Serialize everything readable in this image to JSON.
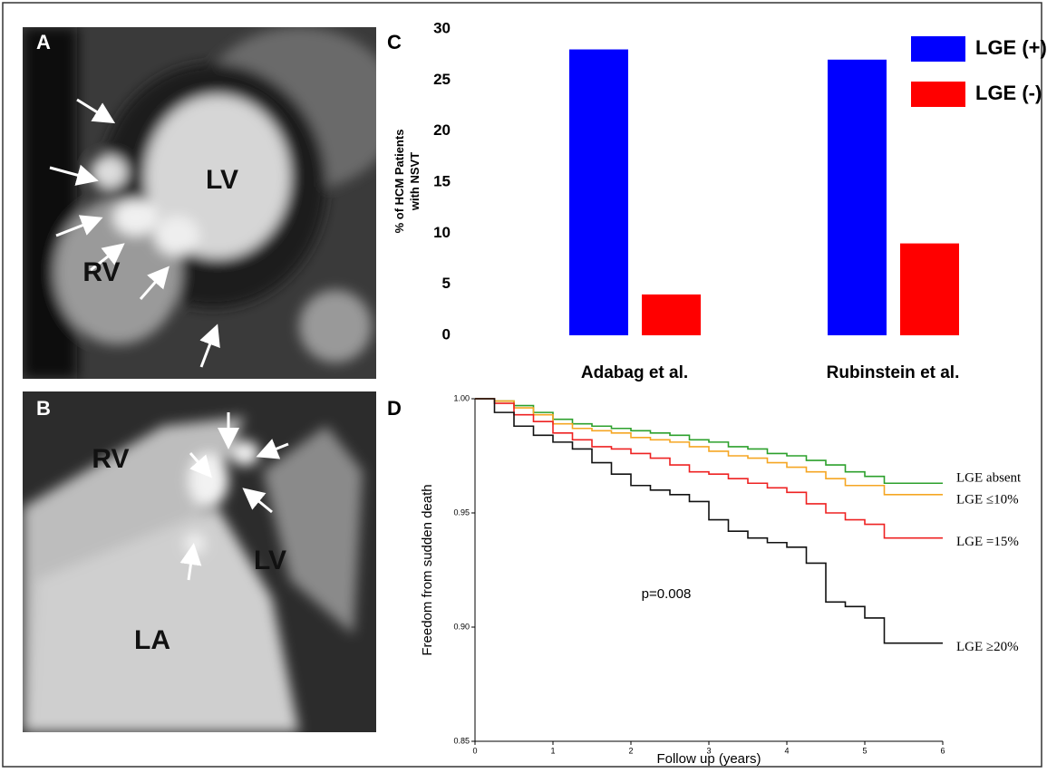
{
  "images": [
    {
      "panel": "A",
      "labels": [
        "LV",
        "RV"
      ]
    },
    {
      "panel": "B",
      "labels": [
        "RV",
        "LV",
        "LA"
      ]
    }
  ],
  "chart_data": [
    {
      "type": "bar",
      "panel_label": "C",
      "y_label": [
        "% of HCM Patients",
        "with NSVT"
      ],
      "categories": [
        "Adabag et al.",
        "Rubinstein et al."
      ],
      "series": [
        {
          "name": "LGE (+)",
          "color": "#0000ff",
          "values": [
            28,
            27
          ]
        },
        {
          "name": "LGE (-)",
          "color": "#ff0000",
          "values": [
            4,
            9
          ]
        }
      ],
      "ylim": [
        0,
        30
      ],
      "yticks": [
        0,
        5,
        10,
        15,
        20,
        25,
        30
      ],
      "legend": "top-right"
    },
    {
      "type": "step",
      "panel_label": "D",
      "x_label": "Follow up (years)",
      "y_label": "Freedom from sudden death",
      "annotation": "p=0.008",
      "x": [
        0,
        0.25,
        0.5,
        0.75,
        1,
        1.25,
        1.5,
        1.75,
        2,
        2.25,
        2.5,
        2.75,
        3,
        3.25,
        3.5,
        3.75,
        4,
        4.25,
        4.5,
        4.75,
        5,
        5.25,
        5.5,
        5.75,
        6
      ],
      "series": [
        {
          "name": "LGE absent",
          "color": "#2ca02c",
          "values": [
            1.0,
            0.999,
            0.997,
            0.994,
            0.991,
            0.989,
            0.988,
            0.987,
            0.986,
            0.985,
            0.984,
            0.982,
            0.981,
            0.979,
            0.978,
            0.976,
            0.975,
            0.973,
            0.971,
            0.968,
            0.966,
            0.963,
            0.963,
            0.963,
            0.963
          ]
        },
        {
          "name": "LGE ≤10%",
          "color": "#f5a623",
          "values": [
            1.0,
            0.999,
            0.996,
            0.993,
            0.989,
            0.987,
            0.986,
            0.985,
            0.983,
            0.982,
            0.981,
            0.979,
            0.977,
            0.975,
            0.974,
            0.972,
            0.97,
            0.968,
            0.965,
            0.962,
            0.962,
            0.958,
            0.958,
            0.958,
            0.958
          ]
        },
        {
          "name": "LGE =15%",
          "color": "#ee2222",
          "values": [
            1.0,
            0.998,
            0.993,
            0.99,
            0.985,
            0.982,
            0.979,
            0.978,
            0.976,
            0.974,
            0.971,
            0.968,
            0.967,
            0.965,
            0.963,
            0.961,
            0.959,
            0.954,
            0.95,
            0.947,
            0.945,
            0.939,
            0.939,
            0.939,
            0.939
          ]
        },
        {
          "name": "LGE ≥20%",
          "color": "#111111",
          "values": [
            1.0,
            0.994,
            0.988,
            0.984,
            0.981,
            0.978,
            0.972,
            0.967,
            0.962,
            0.96,
            0.958,
            0.955,
            0.947,
            0.942,
            0.939,
            0.937,
            0.935,
            0.928,
            0.911,
            0.909,
            0.904,
            0.893,
            0.893,
            0.893,
            0.893
          ]
        }
      ],
      "xlim": [
        0,
        6
      ],
      "xticks": [
        0,
        1,
        2,
        3,
        4,
        5,
        6
      ],
      "ylim": [
        0.85,
        1.0
      ],
      "yticks": [
        {
          "value": 0.85,
          "label": "0.85"
        },
        {
          "value": 0.9,
          "label": "0.90"
        },
        {
          "value": 0.95,
          "label": "0.95"
        },
        {
          "value": 1.0,
          "label": "1.00"
        }
      ]
    }
  ]
}
